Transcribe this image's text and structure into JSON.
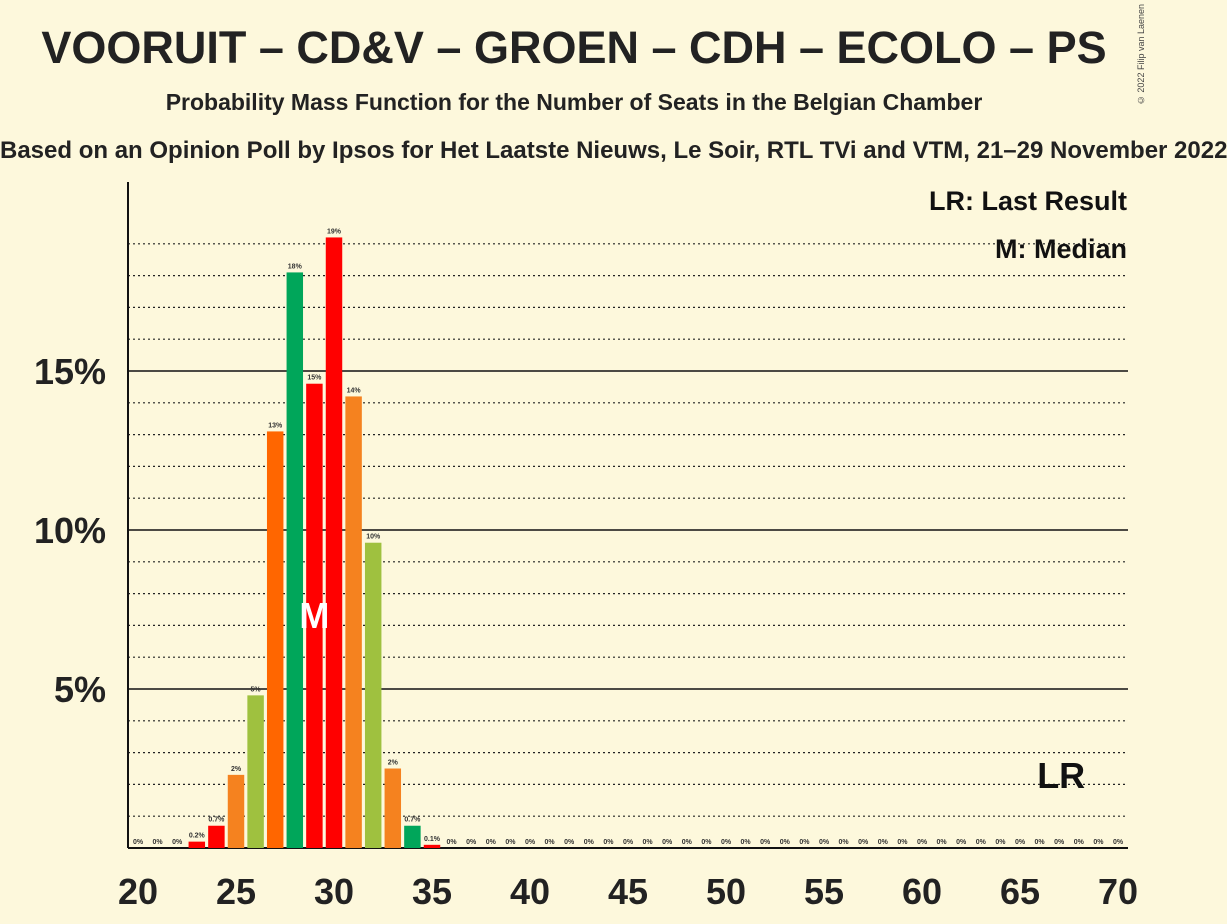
{
  "title": "VOORUIT – CD&V – GROEN – CDH – ECOLO – PS",
  "subtitle": "Probability Mass Function for the Number of Seats in the Belgian Chamber",
  "subtitle2": "Based on an Opinion Poll by Ipsos for Het Laatste Nieuws, Le Soir, RTL TVi and VTM, 21–29 November 2022",
  "copyright": "© 2022 Filip van Laenen",
  "legend": {
    "lr": "LR: Last Result",
    "median": "M: Median"
  },
  "markers": {
    "median_label": "M",
    "lr_label": "LR"
  },
  "colors": {
    "background": "#fdf8dc",
    "red": "#ff0000",
    "orange": "#f5821f",
    "orange_dark": "#ff6600",
    "green": "#00a65a",
    "lime": "#9fc13f"
  },
  "chart_data": {
    "type": "bar",
    "x": [
      20,
      21,
      22,
      23,
      24,
      25,
      26,
      27,
      28,
      29,
      30,
      31,
      32,
      33,
      34,
      35,
      36,
      37,
      38,
      39,
      40,
      41,
      42,
      43,
      44,
      45,
      46,
      47,
      48,
      49,
      50,
      51,
      52,
      53,
      54,
      55,
      56,
      57,
      58,
      59,
      60,
      61,
      62,
      63,
      64,
      65,
      66,
      67,
      68,
      69,
      70
    ],
    "values": [
      0,
      0,
      0,
      0.2,
      0.7,
      2.3,
      4.8,
      13.1,
      18.1,
      14.6,
      19.2,
      14.2,
      9.6,
      2.5,
      0.7,
      0.1,
      0,
      0,
      0,
      0,
      0,
      0,
      0,
      0,
      0,
      0,
      0,
      0,
      0,
      0,
      0,
      0,
      0,
      0,
      0,
      0,
      0,
      0,
      0,
      0,
      0,
      0,
      0,
      0,
      0,
      0,
      0,
      0,
      0,
      0,
      0
    ],
    "labels": [
      "0%",
      "0%",
      "0%",
      "0.2%",
      "0.7%",
      "2%",
      "5%",
      "13%",
      "18%",
      "15%",
      "19%",
      "14%",
      "10%",
      "2%",
      "0.7%",
      "0.1%",
      "0%",
      "0%",
      "0%",
      "0%",
      "0%",
      "0%",
      "0%",
      "0%",
      "0%",
      "0%",
      "0%",
      "0%",
      "0%",
      "0%",
      "0%",
      "0%",
      "0%",
      "0%",
      "0%",
      "0%",
      "0%",
      "0%",
      "0%",
      "0%",
      "0%",
      "0%",
      "0%",
      "0%",
      "0%",
      "0%",
      "0%",
      "0%",
      "0%",
      "0%",
      "0%"
    ],
    "bar_colors": [
      "",
      "",
      "",
      "red",
      "red",
      "orange",
      "lime",
      "orange_dark",
      "green",
      "red",
      "red",
      "orange",
      "lime",
      "orange",
      "green",
      "red",
      "",
      "",
      "",
      "",
      "",
      "",
      "",
      "",
      "",
      "",
      "",
      "",
      "",
      "",
      "",
      "",
      "",
      "",
      "",
      "",
      "",
      "",
      "",
      "",
      "",
      "",
      "",
      "",
      "",
      "",
      "",
      "",
      "",
      "",
      ""
    ],
    "xticks": [
      "20",
      "25",
      "30",
      "35",
      "40",
      "45",
      "50",
      "55",
      "60",
      "65",
      "70"
    ],
    "yticks": [
      "5%",
      "10%",
      "15%"
    ],
    "ylim": [
      0,
      20.5
    ],
    "xlim": [
      20,
      70
    ],
    "median_seat": 29,
    "last_result_seat": 67
  }
}
